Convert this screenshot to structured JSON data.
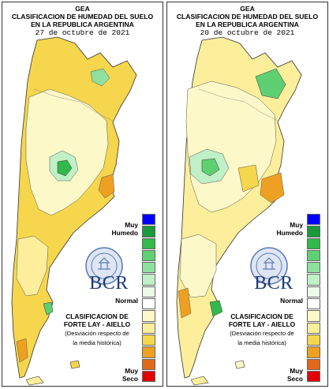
{
  "panels": [
    {
      "header_l1": "GEA",
      "header_l2": "CLASIFICACION DE HUMEDAD DEL SUELO",
      "header_l3": "EN LA REPUBLICA ARGENTINA",
      "date": "27 de octubre de 2021"
    },
    {
      "header_l1": "GEA",
      "header_l2": "CLASIFICACION DE HUMEDAD DEL SUELO",
      "header_l3": "EN LA REPUBLICA ARGENTINA",
      "date": "20 de octubre de 2021"
    }
  ],
  "legend": {
    "muy": "Muy",
    "humedo": "Humedo",
    "normal": "Normal",
    "muy_seco_1": "Muy",
    "muy_seco_2": "Seco",
    "colors": [
      "#0000ff",
      "#1a9a3a",
      "#33b84d",
      "#5fd072",
      "#8fe09c",
      "#bff0c6",
      "#ecfaea",
      "#ffffff",
      "#fdf8c8",
      "#fcee9a",
      "#f6d64c",
      "#eea022",
      "#e06a1a",
      "#e00000"
    ]
  },
  "brand": "BCR",
  "classification": {
    "line1": "CLASIFICACION DE",
    "line2": "FORTE LAY - AIELLO",
    "line3": "(Desviación respecto de",
    "line4": "la media histórica)"
  }
}
